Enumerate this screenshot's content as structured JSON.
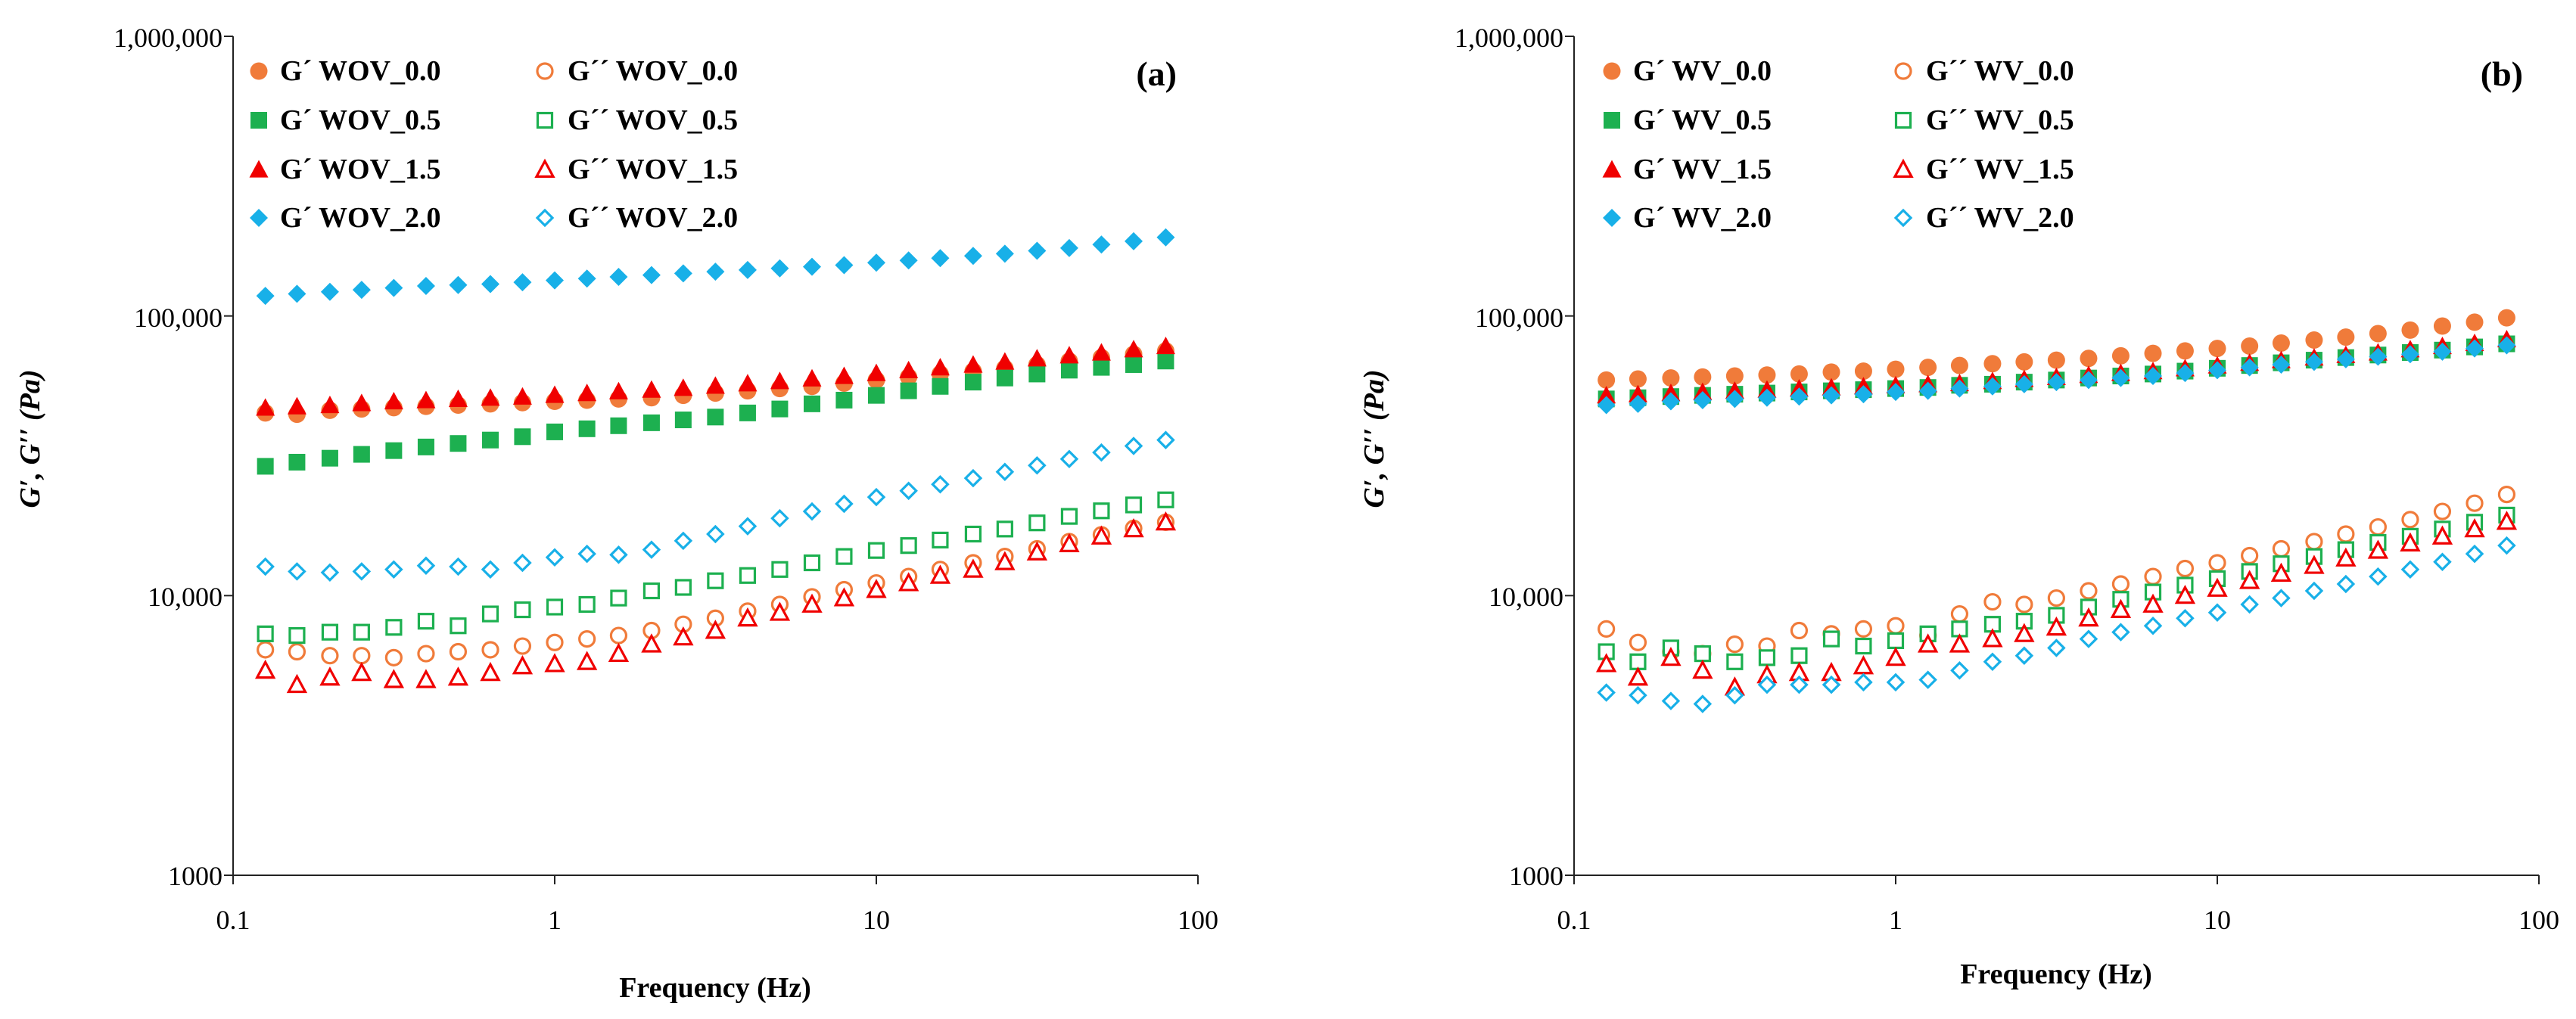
{
  "colors": {
    "s0": "#F07B3A",
    "s05": "#1DB050",
    "s15": "#F00000",
    "s20": "#18B0E8"
  },
  "chart_data": [
    {
      "type": "scatter",
      "panel_label": "(a)",
      "xlabel": "Frequency (Hz)",
      "ylabel": "G′, G′′ (Pa)",
      "xscale": "log",
      "yscale": "log",
      "xlim": [
        0.1,
        100
      ],
      "ylim": [
        1000,
        1000000
      ],
      "x_ticks": [
        "0.1",
        "1",
        "10",
        "100"
      ],
      "y_ticks": [
        "1000",
        "10,000",
        "100,000",
        "1,000,000"
      ],
      "x": [
        0.126,
        0.158,
        0.2,
        0.251,
        0.316,
        0.398,
        0.501,
        0.631,
        0.794,
        1.0,
        1.26,
        1.58,
        2.0,
        2.51,
        3.16,
        3.98,
        5.01,
        6.31,
        7.94,
        10.0,
        12.6,
        15.8,
        20.0,
        25.1,
        31.6,
        39.8,
        50.1,
        63.1,
        79.4
      ],
      "series": [
        {
          "name": "G´ WOV_0.0",
          "marker": "circle",
          "filled": true,
          "color_key": "s0",
          "values": [
            45000,
            44500,
            46000,
            46500,
            47000,
            47500,
            48000,
            48500,
            49000,
            49500,
            50000,
            50500,
            51000,
            52000,
            53000,
            54000,
            55000,
            56000,
            57500,
            59000,
            60500,
            62000,
            63500,
            65000,
            67000,
            69000,
            71000,
            73000,
            75000
          ]
        },
        {
          "name": "G´´ WOV_0.0",
          "marker": "circle",
          "filled": false,
          "color_key": "s0",
          "values": [
            6400,
            6300,
            6100,
            6100,
            6000,
            6200,
            6300,
            6400,
            6600,
            6800,
            7000,
            7200,
            7500,
            7900,
            8300,
            8800,
            9300,
            9900,
            10500,
            11100,
            11700,
            12400,
            13100,
            13800,
            14700,
            15600,
            16500,
            17400,
            18300
          ]
        },
        {
          "name": "G´ WOV_0.5",
          "marker": "square",
          "filled": true,
          "color_key": "s05",
          "values": [
            29000,
            30000,
            31000,
            32000,
            33000,
            34000,
            35000,
            36000,
            37000,
            38500,
            39500,
            40500,
            41500,
            42500,
            43500,
            45000,
            46500,
            48500,
            50000,
            52000,
            54000,
            56000,
            58000,
            60000,
            62000,
            64000,
            65500,
            67000,
            69000
          ]
        },
        {
          "name": "G´´ WOV_0.5",
          "marker": "square",
          "filled": false,
          "color_key": "s05",
          "values": [
            7300,
            7200,
            7400,
            7400,
            7700,
            8100,
            7800,
            8600,
            8900,
            9100,
            9300,
            9800,
            10400,
            10700,
            11300,
            11800,
            12400,
            13100,
            13800,
            14500,
            15100,
            15800,
            16600,
            17300,
            18200,
            19200,
            20100,
            21100,
            22000
          ]
        },
        {
          "name": "G´ WOV_1.5",
          "marker": "triangle",
          "filled": true,
          "color_key": "s15",
          "values": [
            47000,
            47500,
            48000,
            48800,
            49500,
            50000,
            50500,
            51000,
            51500,
            52200,
            53000,
            53800,
            54500,
            55300,
            56300,
            57400,
            58500,
            59800,
            61000,
            62500,
            64000,
            65500,
            67000,
            68700,
            70500,
            72300,
            74000,
            76000,
            78000
          ]
        },
        {
          "name": "G´´ WOV_1.5",
          "marker": "triangle",
          "filled": false,
          "color_key": "s15",
          "values": [
            5400,
            4800,
            5100,
            5300,
            5000,
            5000,
            5100,
            5300,
            5600,
            5700,
            5800,
            6200,
            6700,
            7100,
            7500,
            8300,
            8700,
            9300,
            9800,
            10500,
            11100,
            11800,
            12400,
            13200,
            14300,
            15300,
            16300,
            17300,
            18300
          ]
        },
        {
          "name": "G´ WOV_2.0",
          "marker": "diamond",
          "filled": true,
          "color_key": "s20",
          "values": [
            118000,
            120000,
            122000,
            124000,
            126000,
            128000,
            129000,
            130000,
            132000,
            134000,
            136000,
            138000,
            140000,
            142000,
            144000,
            146000,
            148000,
            150000,
            152000,
            155000,
            158000,
            161000,
            164000,
            167000,
            171000,
            175000,
            180000,
            185000,
            191000
          ]
        },
        {
          "name": "G´´ WOV_2.0",
          "marker": "diamond",
          "filled": false,
          "color_key": "s20",
          "values": [
            12700,
            12200,
            12100,
            12200,
            12400,
            12800,
            12700,
            12400,
            13100,
            13700,
            14100,
            14000,
            14600,
            15700,
            16600,
            17700,
            18900,
            20000,
            21300,
            22500,
            23700,
            25000,
            26300,
            27700,
            29200,
            30800,
            32500,
            34300,
            36000
          ]
        }
      ]
    },
    {
      "type": "scatter",
      "panel_label": "(b)",
      "xlabel": "Frequency (Hz)",
      "ylabel": "G′, G′′ (Pa)",
      "xscale": "log",
      "yscale": "log",
      "xlim": [
        0.1,
        100
      ],
      "ylim": [
        1000,
        1000000
      ],
      "x_ticks": [
        "0.1",
        "1",
        "10",
        "100"
      ],
      "y_ticks": [
        "1000",
        "10,000",
        "100,000",
        "1,000,000"
      ],
      "x": [
        0.126,
        0.158,
        0.2,
        0.251,
        0.316,
        0.398,
        0.501,
        0.631,
        0.794,
        1.0,
        1.26,
        1.58,
        2.0,
        2.51,
        3.16,
        3.98,
        5.01,
        6.31,
        7.94,
        10.0,
        12.6,
        15.8,
        20.0,
        25.1,
        31.6,
        39.8,
        50.1,
        63.1,
        79.4
      ],
      "series": [
        {
          "name": "G´ WV_0.0",
          "marker": "circle",
          "filled": true,
          "color_key": "s0",
          "values": [
            59000,
            59500,
            60000,
            60500,
            61000,
            61500,
            62000,
            63000,
            63500,
            64500,
            65500,
            66500,
            67500,
            68500,
            69500,
            70500,
            72000,
            73500,
            75000,
            76500,
            78000,
            80000,
            82000,
            84000,
            86500,
            89000,
            92000,
            95000,
            98500
          ]
        },
        {
          "name": "G´´ WV_0.0",
          "marker": "circle",
          "filled": false,
          "color_key": "s0",
          "values": [
            7600,
            6800,
            6300,
            6200,
            6700,
            6600,
            7500,
            7300,
            7600,
            7800,
            7200,
            8600,
            9500,
            9300,
            9800,
            10400,
            11000,
            11700,
            12500,
            13100,
            13900,
            14700,
            15600,
            16600,
            17600,
            18700,
            20000,
            21400,
            23000
          ]
        },
        {
          "name": "G´ WV_0.5",
          "marker": "square",
          "filled": true,
          "color_key": "s05",
          "values": [
            50500,
            51000,
            51500,
            52000,
            52500,
            53000,
            53500,
            54000,
            54500,
            55000,
            55500,
            56500,
            57000,
            58000,
            59000,
            60000,
            61000,
            62000,
            63500,
            65000,
            66500,
            68000,
            69500,
            71000,
            72500,
            74000,
            75500,
            77500,
            79500
          ]
        },
        {
          "name": "G´´ WV_0.5",
          "marker": "square",
          "filled": false,
          "color_key": "s05",
          "values": [
            6300,
            5800,
            6500,
            6200,
            5800,
            6000,
            6100,
            7000,
            6600,
            6900,
            7300,
            7600,
            7900,
            8100,
            8500,
            9100,
            9700,
            10300,
            10900,
            11500,
            12200,
            13000,
            13800,
            14600,
            15500,
            16300,
            17300,
            18300,
            19400
          ]
        },
        {
          "name": "G´ WV_1.5",
          "marker": "triangle",
          "filled": true,
          "color_key": "s15",
          "values": [
            52000,
            52500,
            53000,
            53500,
            54000,
            54500,
            55000,
            55500,
            56000,
            56500,
            57000,
            57500,
            58500,
            59500,
            60500,
            61500,
            62500,
            63500,
            65000,
            66500,
            68000,
            69500,
            71000,
            72500,
            74000,
            76000,
            78000,
            80000,
            82500
          ]
        },
        {
          "name": "G´´ WV_1.5",
          "marker": "triangle",
          "filled": false,
          "color_key": "s15",
          "values": [
            5700,
            5100,
            6000,
            5400,
            4700,
            5200,
            5300,
            5300,
            5600,
            6000,
            6700,
            6700,
            7000,
            7300,
            7700,
            8300,
            8900,
            9300,
            10000,
            10600,
            11300,
            12000,
            12800,
            13600,
            14500,
            15400,
            16300,
            17300,
            18400
          ]
        },
        {
          "name": "G´ WV_2.0",
          "marker": "diamond",
          "filled": true,
          "color_key": "s20",
          "values": [
            48000,
            48500,
            49500,
            50000,
            50500,
            51000,
            51500,
            52000,
            52500,
            53500,
            54000,
            55000,
            56000,
            57000,
            58000,
            59000,
            60000,
            61000,
            62500,
            64000,
            65500,
            67000,
            68500,
            70000,
            71500,
            73000,
            74500,
            76500,
            78500
          ]
        },
        {
          "name": "G´´ WV_2.0",
          "marker": "diamond",
          "filled": false,
          "color_key": "s20",
          "values": [
            4500,
            4400,
            4200,
            4100,
            4400,
            4800,
            4800,
            4800,
            4900,
            4900,
            5000,
            5400,
            5800,
            6100,
            6500,
            7000,
            7400,
            7800,
            8300,
            8700,
            9300,
            9800,
            10400,
            11000,
            11700,
            12400,
            13200,
            14100,
            15100
          ]
        }
      ]
    }
  ]
}
